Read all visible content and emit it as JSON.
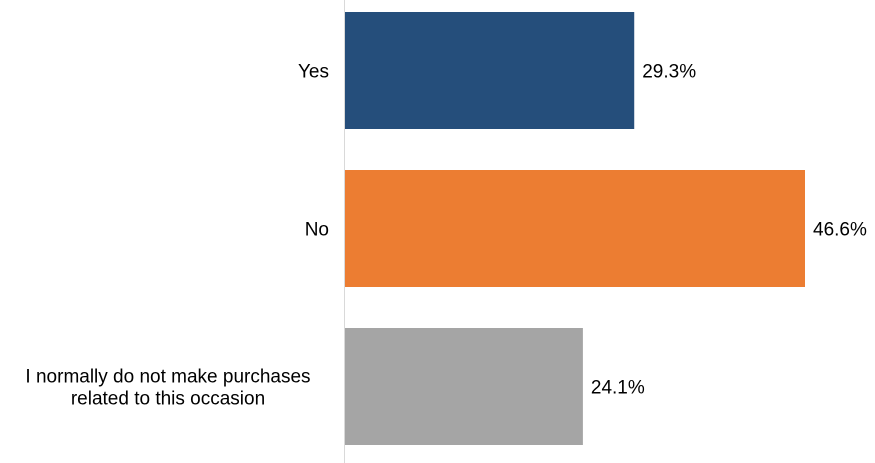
{
  "chart_data": {
    "type": "bar",
    "orientation": "horizontal",
    "categories": [
      [
        "Yes"
      ],
      [
        "No"
      ],
      [
        "I normally do not make purchases",
        "related to this occasion"
      ]
    ],
    "values": [
      29.3,
      46.6,
      24.1
    ],
    "value_labels": [
      "29.3%",
      "46.6%",
      "24.1%"
    ],
    "colors": [
      "#254e7b",
      "#ec7d32",
      "#a5a5a5"
    ],
    "title": "",
    "xlabel": "",
    "ylabel": "",
    "xlim": [
      0,
      46.6
    ],
    "grid": false,
    "legend": "none"
  }
}
